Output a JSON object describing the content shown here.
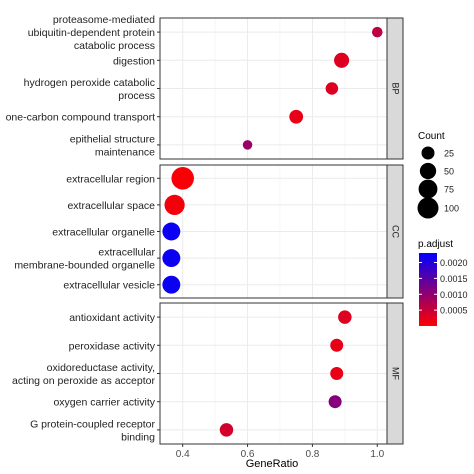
{
  "chart_data": {
    "type": "scatter",
    "subtype": "dot-plot-faceted",
    "xlabel": "GeneRatio",
    "x_ticks": [
      "0.4",
      "0.6",
      "0.8",
      "1.0"
    ],
    "x_tick_values": [
      0.4,
      0.6,
      0.8,
      1.0
    ],
    "xlim": [
      0.33,
      1.03
    ],
    "grid": true,
    "facets": [
      {
        "name": "BP",
        "terms": [
          {
            "label": "proteasome-mediated\nubiquitin-dependent protein\ncatabolic process",
            "gene_ratio": 1.0,
            "count": 12,
            "p_adjust": 0.0006
          },
          {
            "label": "digestion",
            "gene_ratio": 0.89,
            "count": 40,
            "p_adjust": 0.0003
          },
          {
            "label": "hydrogen peroxide catabolic\nprocess",
            "gene_ratio": 0.86,
            "count": 22,
            "p_adjust": 0.0003
          },
          {
            "label": "one-carbon compound transport",
            "gene_ratio": 0.75,
            "count": 30,
            "p_adjust": 0.0002
          },
          {
            "label": "epithelial structure\nmaintenance",
            "gene_ratio": 0.6,
            "count": 8,
            "p_adjust": 0.0009
          }
        ]
      },
      {
        "name": "CC",
        "terms": [
          {
            "label": "extracellular region",
            "gene_ratio": 0.4,
            "count": 120,
            "p_adjust": 5e-05
          },
          {
            "label": "extracellular space",
            "gene_ratio": 0.375,
            "count": 90,
            "p_adjust": 0.0001
          },
          {
            "label": "extracellular organelle",
            "gene_ratio": 0.365,
            "count": 65,
            "p_adjust": 0.0022
          },
          {
            "label": "extracellular\nmembrane-bounded organelle",
            "gene_ratio": 0.365,
            "count": 65,
            "p_adjust": 0.0022
          },
          {
            "label": "extracellular vesicle",
            "gene_ratio": 0.365,
            "count": 65,
            "p_adjust": 0.0022
          }
        ]
      },
      {
        "name": "MF",
        "terms": [
          {
            "label": "antioxidant activity",
            "gene_ratio": 0.9,
            "count": 28,
            "p_adjust": 0.0003
          },
          {
            "label": "peroxidase activity",
            "gene_ratio": 0.875,
            "count": 25,
            "p_adjust": 0.0002
          },
          {
            "label": "oxidoreductase activity,\nacting on peroxide as acceptor",
            "gene_ratio": 0.875,
            "count": 25,
            "p_adjust": 0.0002
          },
          {
            "label": "oxygen carrier activity",
            "gene_ratio": 0.87,
            "count": 25,
            "p_adjust": 0.0011
          },
          {
            "label": "G protein-coupled receptor\nbinding",
            "gene_ratio": 0.535,
            "count": 28,
            "p_adjust": 0.0004
          }
        ]
      }
    ],
    "size_legend": {
      "title": "Count",
      "values": [
        25,
        50,
        75,
        100
      ]
    },
    "color_legend": {
      "title": "p.adjust",
      "ticks": [
        "0.0020",
        "0.0015",
        "0.0010",
        "0.0005"
      ],
      "tick_values": [
        0.002,
        0.0015,
        0.001,
        0.0005
      ],
      "range": [
        0.0,
        0.0023
      ],
      "low_color": "#ff0000",
      "high_color": "#0000ff"
    },
    "colors": {
      "panel_border": "#333333",
      "strip_fill": "#d9d9d9",
      "grid": "#ebebeb",
      "size_legend_dot": "#000000"
    }
  }
}
